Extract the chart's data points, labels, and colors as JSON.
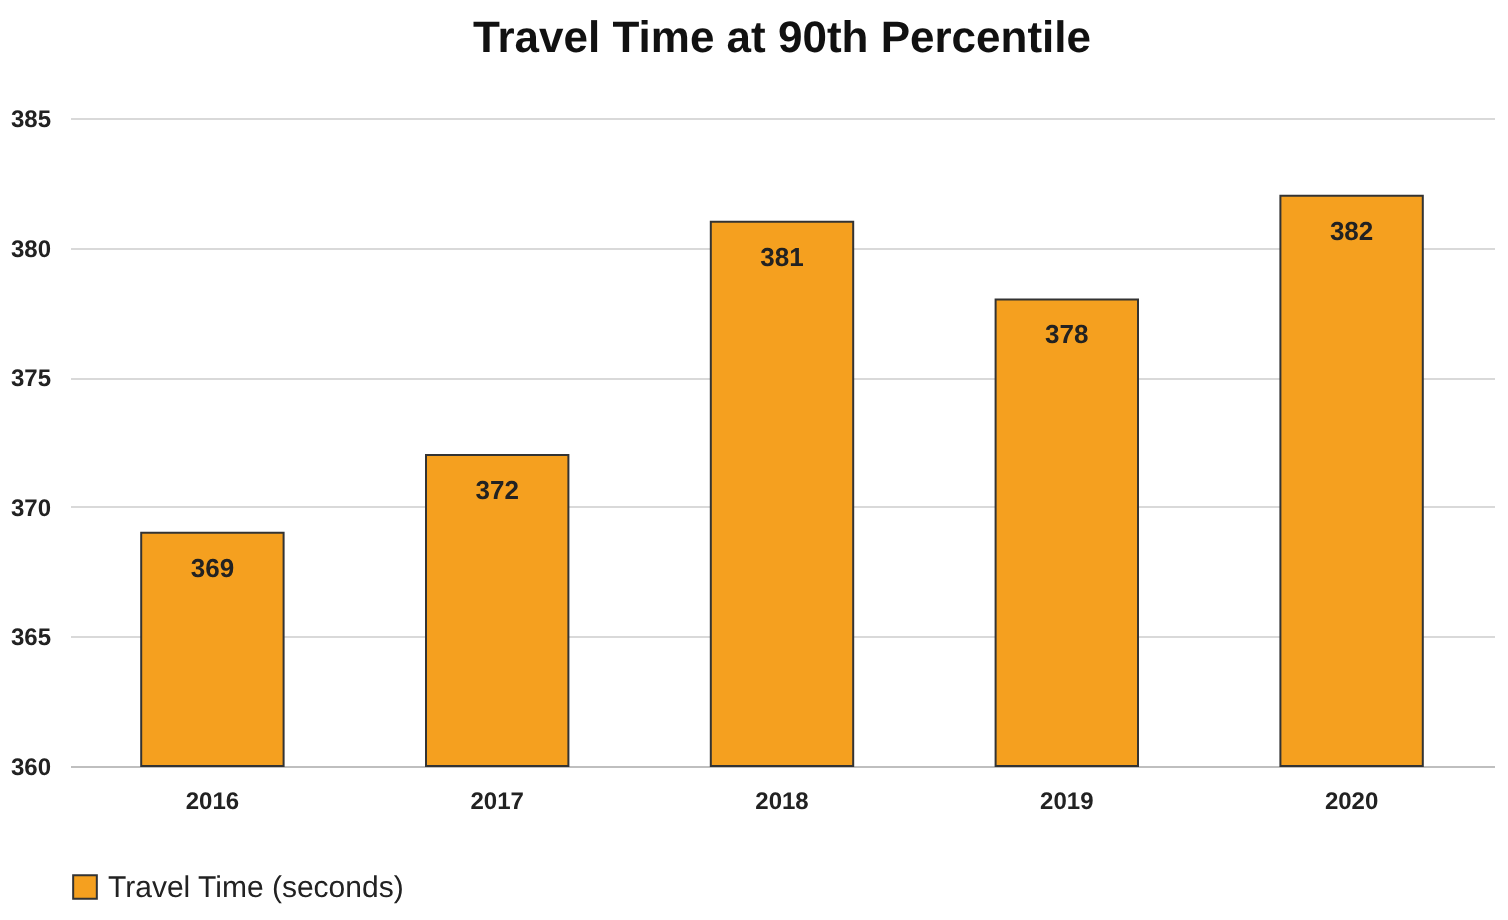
{
  "chart_data": {
    "type": "bar",
    "title": "Travel Time at 90th Percentile",
    "categories": [
      "2016",
      "2017",
      "2018",
      "2019",
      "2020"
    ],
    "series": [
      {
        "name": "Travel Time (seconds)",
        "color": "#f5a01f",
        "values": [
          369,
          372,
          381,
          378,
          382
        ]
      }
    ],
    "ylim": [
      360,
      385
    ],
    "yticks": [
      360,
      365,
      370,
      375,
      380,
      385
    ],
    "grid": "y",
    "legend": "bottom",
    "data_labels": true
  }
}
